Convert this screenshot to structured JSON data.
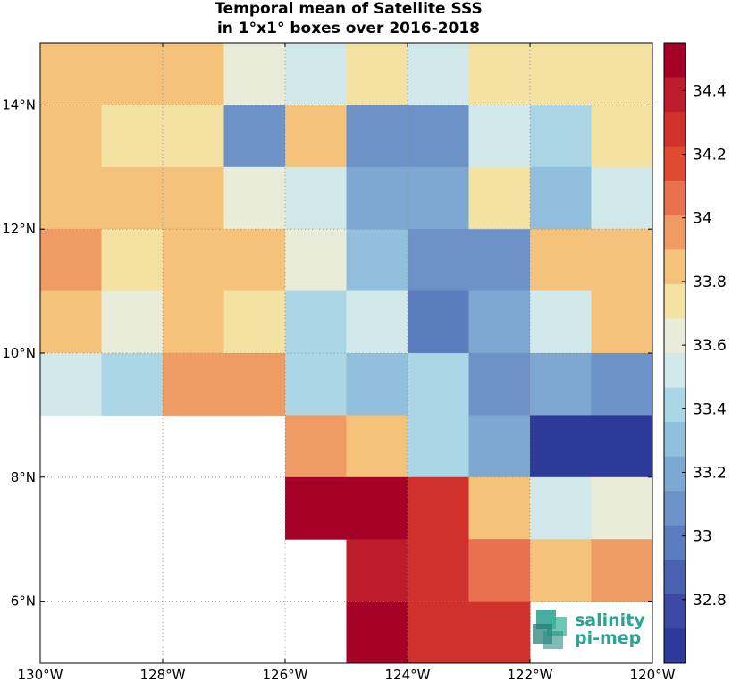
{
  "chart_data": {
    "type": "heatmap",
    "title": "Temporal mean of Satellite SSS",
    "subtitle": "in 1°x1° boxes over 2016-2018",
    "x_range": [
      -130,
      -120
    ],
    "y_range": [
      5,
      15
    ],
    "x_ticks": [
      "130°W",
      "128°W",
      "126°W",
      "124°W",
      "122°W",
      "120°W"
    ],
    "y_ticks": [
      "6°N",
      "8°N",
      "10°N",
      "12°N",
      "14°N"
    ],
    "grid": true,
    "grid_lon_edges": [
      -130,
      -129,
      -128,
      -127,
      -126,
      -125,
      -124,
      -123,
      -122,
      -121,
      -120
    ],
    "grid_lat_rows_north_to_south": [
      15,
      14,
      13,
      12,
      11,
      10,
      9,
      8,
      7,
      6,
      5
    ],
    "values": [
      [
        33.8,
        33.8,
        33.8,
        33.6,
        33.5,
        33.7,
        33.5,
        33.7,
        33.7,
        33.7
      ],
      [
        33.8,
        33.7,
        33.7,
        33.1,
        33.8,
        33.1,
        33.1,
        33.5,
        33.4,
        33.7
      ],
      [
        33.8,
        33.9,
        33.8,
        33.6,
        33.5,
        33.2,
        33.2,
        33.7,
        33.3,
        33.5
      ],
      [
        34.0,
        33.7,
        33.8,
        33.9,
        33.6,
        33.3,
        33.1,
        33.1,
        33.8,
        33.8
      ],
      [
        33.9,
        33.6,
        33.8,
        33.7,
        33.4,
        33.5,
        33.0,
        33.2,
        33.5,
        33.8
      ],
      [
        33.5,
        33.4,
        34.0,
        34.0,
        33.4,
        33.3,
        33.4,
        33.1,
        33.2,
        33.1
      ],
      [
        null,
        null,
        null,
        null,
        34.0,
        33.8,
        33.4,
        33.2,
        32.7,
        32.7
      ],
      [
        null,
        null,
        null,
        null,
        34.5,
        34.5,
        34.3,
        33.8,
        33.5,
        33.6
      ],
      [
        null,
        null,
        null,
        null,
        null,
        34.4,
        34.3,
        34.1,
        33.8,
        34.0
      ],
      [
        null,
        null,
        null,
        null,
        null,
        34.5,
        34.3,
        34.3,
        null,
        null
      ]
    ],
    "colorbar": {
      "range": [
        32.6,
        34.55
      ],
      "ticks": [
        "34.4",
        "34.2",
        "34",
        "33.8",
        "33.6",
        "33.4",
        "33.2",
        "33",
        "32.8"
      ],
      "tick_values": [
        34.4,
        34.2,
        34.0,
        33.8,
        33.6,
        33.4,
        33.2,
        33.0,
        32.8
      ],
      "colors_top_to_bottom": [
        "#a50026",
        "#bd1c2a",
        "#d1312d",
        "#e04a32",
        "#e8714f",
        "#ef9b64",
        "#f4c27a",
        "#f3e2a2",
        "#e8ecd8",
        "#d2e9ec",
        "#aad6e5",
        "#92bfdb",
        "#7ea8d1",
        "#6c92c8",
        "#5b7cbd",
        "#4a61b0",
        "#3c4aa6",
        "#2e3a9a"
      ]
    },
    "nodata_color": "#ffffff"
  },
  "logo": {
    "line1": "salinity",
    "line2": "pi-mep"
  }
}
